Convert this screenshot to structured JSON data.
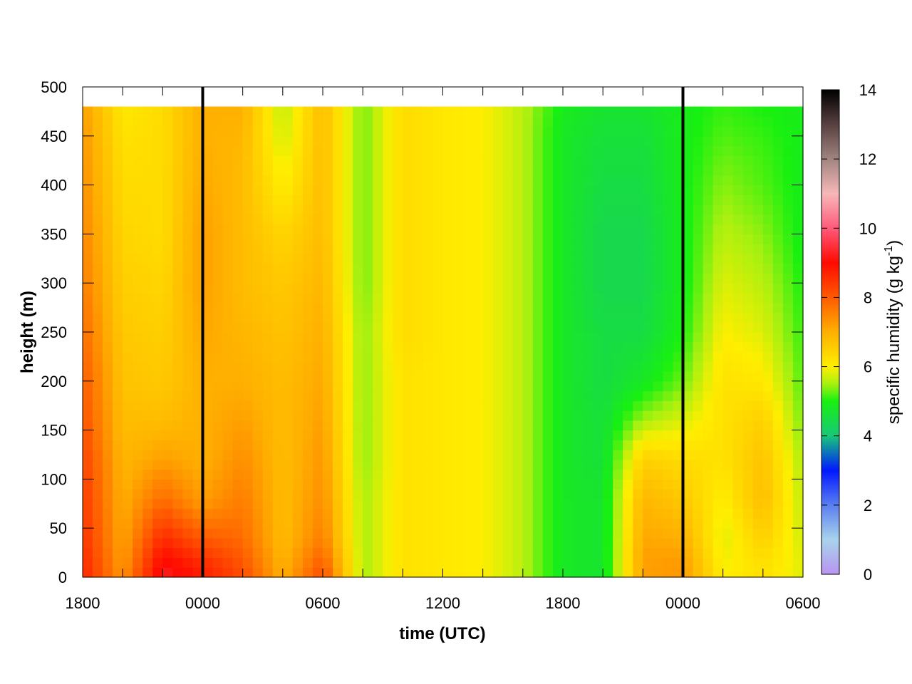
{
  "chart_data": {
    "type": "heatmap",
    "xlabel": "time (UTC)",
    "ylabel": "height (m)",
    "colorbar": {
      "label_prefix": "specific humidity (g kg",
      "label_sup": "-1",
      "label_suffix": ")",
      "ticks": [
        "0",
        "2",
        "4",
        "6",
        "8",
        "10",
        "12",
        "14"
      ],
      "range": [
        0,
        14
      ]
    },
    "x_tick_labels": [
      "1800",
      "0000",
      "0600",
      "1200",
      "1800",
      "0000",
      "0600"
    ],
    "x_range_hours": [
      0,
      36
    ],
    "y_tick_labels": [
      "0",
      "50",
      "100",
      "150",
      "200",
      "250",
      "300",
      "350",
      "400",
      "450",
      "500"
    ],
    "ylim": [
      0,
      500
    ],
    "data_top_height": 480,
    "vertical_markers": [
      "0000",
      "0000"
    ],
    "vertical_marker_hours": [
      6,
      30
    ],
    "time_hours": [
      0,
      2,
      4,
      6,
      8,
      10,
      12,
      14,
      16,
      18,
      20,
      22,
      24,
      26,
      28,
      30,
      32,
      34,
      36
    ],
    "heights_m": [
      0,
      20,
      40,
      80,
      120,
      160,
      200,
      250,
      300,
      350,
      400,
      450,
      480
    ],
    "humidity_g_per_kg": [
      [
        8.7,
        8.6,
        8.5,
        8.4,
        8.3,
        8.1,
        8.0,
        7.8,
        7.6,
        7.5,
        7.4,
        7.3,
        7.2
      ],
      [
        7.3,
        7.2,
        7.1,
        7.0,
        6.9,
        6.8,
        6.7,
        6.6,
        6.5,
        6.4,
        6.3,
        6.2,
        6.1
      ],
      [
        9.3,
        9.0,
        8.6,
        7.8,
        7.2,
        6.8,
        6.6,
        6.5,
        6.4,
        6.3,
        6.3,
        6.3,
        6.3
      ],
      [
        8.8,
        8.5,
        8.0,
        7.2,
        7.0,
        7.0,
        7.0,
        7.1,
        7.2,
        7.2,
        7.1,
        7.0,
        7.0
      ],
      [
        8.2,
        8.0,
        7.8,
        7.6,
        7.4,
        7.2,
        7.0,
        6.9,
        6.8,
        6.8,
        6.8,
        6.9,
        7.0
      ],
      [
        7.0,
        6.9,
        6.8,
        6.8,
        6.8,
        6.8,
        6.8,
        6.7,
        6.6,
        6.4,
        6.0,
        5.7,
        5.6
      ],
      [
        8.2,
        7.9,
        7.6,
        7.4,
        7.3,
        7.2,
        7.1,
        7.0,
        6.9,
        6.8,
        6.8,
        6.8,
        6.8
      ],
      [
        5.5,
        5.5,
        5.5,
        5.5,
        5.4,
        5.4,
        5.4,
        5.4,
        5.3,
        5.3,
        5.3,
        5.3,
        5.3
      ],
      [
        6.2,
        6.2,
        6.2,
        6.2,
        6.2,
        6.2,
        6.2,
        6.3,
        6.3,
        6.3,
        6.3,
        6.3,
        6.3
      ],
      [
        6.1,
        6.1,
        6.1,
        6.1,
        6.1,
        6.1,
        6.1,
        6.1,
        6.1,
        6.1,
        6.1,
        6.1,
        6.1
      ],
      [
        6.0,
        6.0,
        6.0,
        6.0,
        6.0,
        6.0,
        6.0,
        6.0,
        6.0,
        6.0,
        6.0,
        6.0,
        6.0
      ],
      [
        5.6,
        5.6,
        5.6,
        5.6,
        5.6,
        5.6,
        5.6,
        5.6,
        5.6,
        5.6,
        5.6,
        5.6,
        5.6
      ],
      [
        4.8,
        4.8,
        4.8,
        4.8,
        4.8,
        4.8,
        4.8,
        4.8,
        4.8,
        4.8,
        4.8,
        4.8,
        4.9
      ],
      [
        4.7,
        4.7,
        4.7,
        4.7,
        4.6,
        4.6,
        4.5,
        4.5,
        4.4,
        4.4,
        4.5,
        4.6,
        4.7
      ],
      [
        7.2,
        7.2,
        7.1,
        6.9,
        6.5,
        5.5,
        4.8,
        4.5,
        4.4,
        4.4,
        4.5,
        4.6,
        4.7
      ],
      [
        7.3,
        7.2,
        7.0,
        6.6,
        6.3,
        5.8,
        5.3,
        5.0,
        4.9,
        4.9,
        4.9,
        4.9,
        4.9
      ],
      [
        6.0,
        5.9,
        5.8,
        6.0,
        6.2,
        6.2,
        6.2,
        6.0,
        5.8,
        5.6,
        5.4,
        5.2,
        5.1
      ],
      [
        6.2,
        6.3,
        6.5,
        6.8,
        6.7,
        6.5,
        6.1,
        5.8,
        5.6,
        5.4,
        5.2,
        5.1,
        5.0
      ],
      [
        5.8,
        5.8,
        5.7,
        5.6,
        5.5,
        5.3,
        5.2,
        5.1,
        5.0,
        4.9,
        4.9,
        4.9,
        4.9
      ]
    ],
    "colormap": [
      {
        "v": 0,
        "c": "#b894f0"
      },
      {
        "v": 1,
        "c": "#a8d4ec"
      },
      {
        "v": 2,
        "c": "#5a7ef0"
      },
      {
        "v": 3,
        "c": "#0018ff"
      },
      {
        "v": 4,
        "c": "#18c878"
      },
      {
        "v": 5,
        "c": "#18f010"
      },
      {
        "v": 5.5,
        "c": "#a8f010"
      },
      {
        "v": 6,
        "c": "#ffee00"
      },
      {
        "v": 7,
        "c": "#ffb000"
      },
      {
        "v": 8,
        "c": "#ff5a00"
      },
      {
        "v": 9,
        "c": "#ff0a00"
      },
      {
        "v": 10,
        "c": "#ff5a7a"
      },
      {
        "v": 11,
        "c": "#f7b8b8"
      },
      {
        "v": 12,
        "c": "#a08480"
      },
      {
        "v": 13,
        "c": "#584040"
      },
      {
        "v": 14,
        "c": "#000000"
      }
    ]
  }
}
